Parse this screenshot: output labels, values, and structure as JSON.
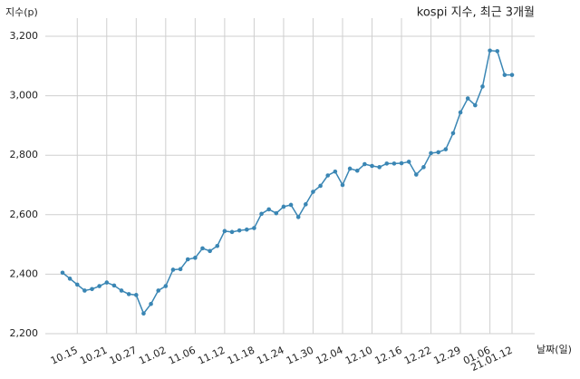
{
  "chart_data": {
    "type": "line",
    "title": "kospi 지수, 최근 3개월",
    "y_label": "지수(p)",
    "x_label": "날짜(일)",
    "categories": [
      null,
      null,
      "10.15",
      null,
      null,
      null,
      "10.21",
      null,
      null,
      null,
      "10.27",
      null,
      null,
      null,
      "11.02",
      null,
      null,
      null,
      "11.06",
      null,
      null,
      null,
      "11.12",
      null,
      null,
      null,
      "11.18",
      null,
      null,
      null,
      "11.24",
      null,
      null,
      null,
      "11.30",
      null,
      null,
      null,
      "12.04",
      null,
      null,
      null,
      "12.10",
      null,
      null,
      null,
      "12.16",
      null,
      null,
      null,
      "12.22",
      null,
      null,
      null,
      "12.29",
      null,
      null,
      null,
      "01.06",
      null,
      null,
      "21.01.12"
    ],
    "series": [
      {
        "name": "kospi",
        "color": "#3a86b4",
        "values": [
          2405,
          2385,
          2365,
          2345,
          2350,
          2360,
          2372,
          2362,
          2345,
          2333,
          2330,
          2268,
          2300,
          2345,
          2360,
          2415,
          2417,
          2450,
          2455,
          2487,
          2478,
          2495,
          2545,
          2542,
          2547,
          2550,
          2555,
          2603,
          2618,
          2605,
          2627,
          2633,
          2592,
          2635,
          2677,
          2697,
          2732,
          2745,
          2700,
          2755,
          2748,
          2770,
          2764,
          2760,
          2772,
          2772,
          2773,
          2778,
          2735,
          2760,
          2807,
          2810,
          2820,
          2874,
          2944,
          2991,
          2968,
          3031,
          3152,
          3150,
          3070,
          3070
        ]
      }
    ],
    "ylim": [
      2200,
      3200
    ],
    "yticks": [
      {
        "value": 2200,
        "label": "2,200"
      },
      {
        "value": 2400,
        "label": "2,400"
      },
      {
        "value": 2600,
        "label": "2,600"
      },
      {
        "value": 2800,
        "label": "2,800"
      },
      {
        "value": 3000,
        "label": "3,000"
      },
      {
        "value": 3200,
        "label": "3,200"
      }
    ],
    "grid": true
  }
}
